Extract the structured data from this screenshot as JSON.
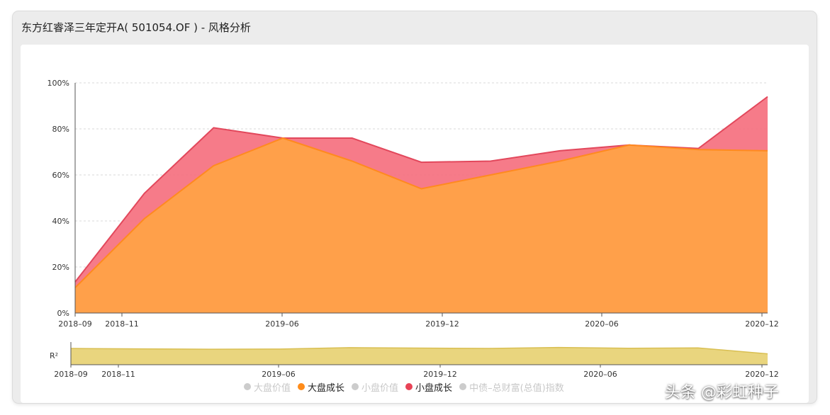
{
  "window": {
    "title": "东方红睿泽三年定开A( 501054.OF ) - 风格分析"
  },
  "chart_data": {
    "type": "area",
    "stacked": true,
    "x": [
      "2018-09",
      "2018-11",
      "2019-01",
      "2019-04",
      "2019-06",
      "2019-09",
      "2019-12",
      "2020-03",
      "2020-06",
      "2020-09",
      "2020-12"
    ],
    "x_tick_labels": [
      "2018–09",
      "2018–11",
      "2019–06",
      "2019–12",
      "2020–06",
      "2020–12"
    ],
    "y_tick_labels": [
      "0%",
      "20%",
      "40%",
      "60%",
      "80%",
      "100%"
    ],
    "ylim": [
      0,
      100
    ],
    "grid": true,
    "series": [
      {
        "name": "大盘成长",
        "color": "#ff9933",
        "values": [
          11,
          41,
          64,
          76,
          66,
          54,
          60,
          66,
          73,
          71,
          70.5
        ]
      },
      {
        "name": "小盘成长",
        "color": "#f25a6e",
        "values": [
          2.5,
          11,
          16.5,
          0,
          10,
          11.5,
          6,
          4.5,
          0,
          0.5,
          23.5
        ]
      }
    ],
    "r2": {
      "label": "R²",
      "color": "#e9d57e",
      "values": [
        0.82,
        0.8,
        0.78,
        0.79,
        0.86,
        0.84,
        0.82,
        0.87,
        0.83,
        0.85,
        0.55
      ],
      "ylim": [
        0,
        1
      ],
      "x_tick_labels": [
        "2018–09",
        "2018–11",
        "2019–06",
        "2019–12",
        "2020–06",
        "2020–12"
      ]
    },
    "legend": {
      "position": "bottom-center",
      "items": [
        {
          "name": "大盘价值",
          "active": false,
          "color": "#cccccc"
        },
        {
          "name": "大盘成长",
          "active": true,
          "color": "#ff8c1a"
        },
        {
          "name": "小盘价值",
          "active": false,
          "color": "#cccccc"
        },
        {
          "name": "小盘成长",
          "active": true,
          "color": "#e84356"
        },
        {
          "name": "中债–总财富(总值)指数",
          "active": false,
          "color": "#cccccc"
        }
      ]
    }
  },
  "watermark": "头条 @彩虹种子"
}
